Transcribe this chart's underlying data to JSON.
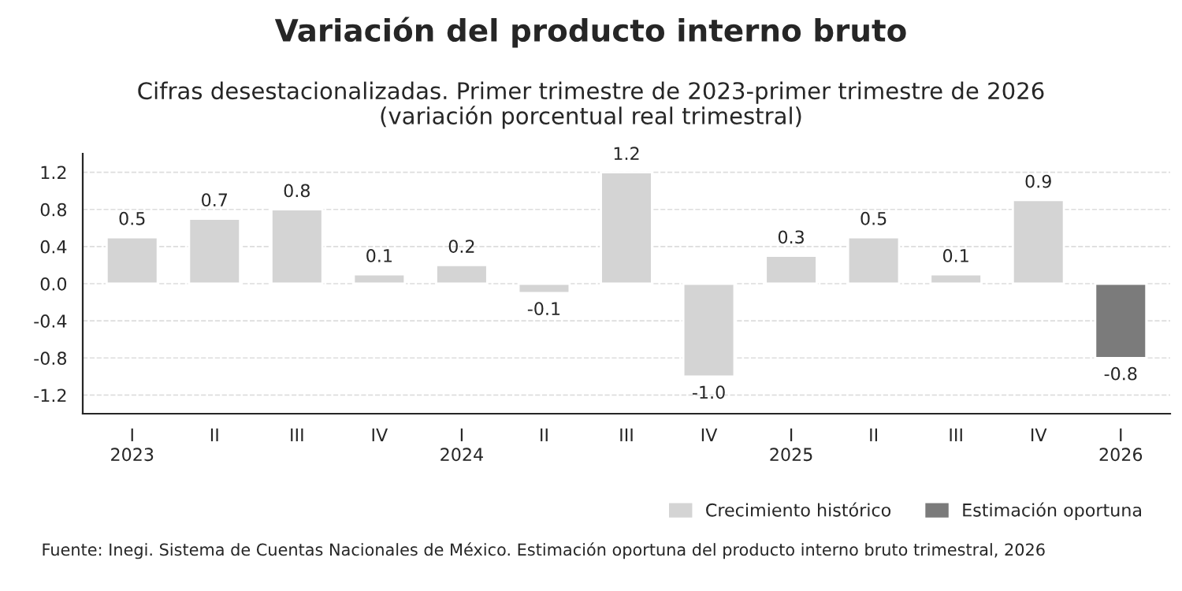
{
  "chart_data": {
    "type": "bar",
    "title": "Variación del producto interno bruto",
    "subtitle": "Cifras desestacionalizadas. Primer trimestre de 2023-primer trimestre de 2026\n(variación porcentual real trimestral)",
    "categories": [
      "I\n2023",
      "II",
      "III",
      "IV",
      "I\n2024",
      "II",
      "III",
      "IV",
      "I\n2025",
      "II",
      "III",
      "IV",
      "I\n2026"
    ],
    "series": [
      {
        "name": "Crecimiento histórico",
        "color": "#d4d4d4",
        "values": [
          0.5,
          0.7,
          0.8,
          0.1,
          0.2,
          -0.1,
          1.2,
          -1.0,
          0.3,
          0.5,
          0.1,
          0.9,
          null
        ],
        "value_labels": [
          "0.5",
          "0.7",
          "0.8",
          "0.1",
          "0.2",
          "-0.1",
          "1.2",
          "-1.0",
          "0.3",
          "0.5",
          "0.1",
          "0.9",
          null
        ]
      },
      {
        "name": "Estimación oportuna",
        "color": "#7b7b7b",
        "values": [
          null,
          null,
          null,
          null,
          null,
          null,
          null,
          null,
          null,
          null,
          null,
          null,
          -0.8
        ],
        "value_labels": [
          null,
          null,
          null,
          null,
          null,
          null,
          null,
          null,
          null,
          null,
          null,
          null,
          "-0.8"
        ]
      }
    ],
    "ylim": [
      -1.4,
      1.4
    ],
    "yticks": [
      {
        "value": -1.2,
        "label": "-1.2"
      },
      {
        "value": -0.8,
        "label": "-0.8"
      },
      {
        "value": -0.4,
        "label": "-0.4"
      },
      {
        "value": 0.0,
        "label": "0.0"
      },
      {
        "value": 0.4,
        "label": "0.4"
      },
      {
        "value": 0.8,
        "label": "0.8"
      },
      {
        "value": 1.2,
        "label": "1.2"
      }
    ],
    "grid": "y",
    "legend": "bottom right",
    "annotations": [
      "Fuente: Inegi. Sistema de Cuentas Nacionales de México. Estimación oportuna del producto interno bruto trimestral, 2026"
    ]
  }
}
